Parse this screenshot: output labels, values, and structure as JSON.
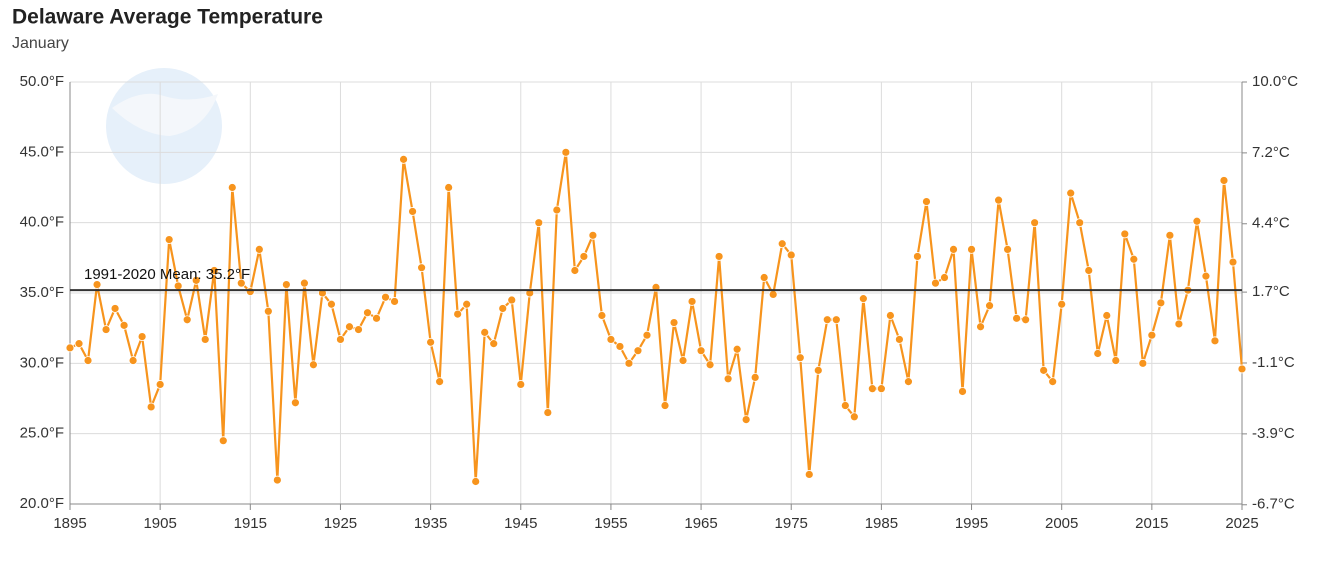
{
  "chart_data": {
    "type": "line",
    "title": "Delaware Average Temperature",
    "subtitle": "January",
    "x": [
      1895,
      1896,
      1897,
      1898,
      1899,
      1900,
      1901,
      1902,
      1903,
      1904,
      1905,
      1906,
      1907,
      1908,
      1909,
      1910,
      1911,
      1912,
      1913,
      1914,
      1915,
      1916,
      1917,
      1918,
      1919,
      1920,
      1921,
      1922,
      1923,
      1924,
      1925,
      1926,
      1927,
      1928,
      1929,
      1930,
      1931,
      1932,
      1933,
      1934,
      1935,
      1936,
      1937,
      1938,
      1939,
      1940,
      1941,
      1942,
      1943,
      1944,
      1945,
      1946,
      1947,
      1948,
      1949,
      1950,
      1951,
      1952,
      1953,
      1954,
      1955,
      1956,
      1957,
      1958,
      1959,
      1960,
      1961,
      1962,
      1963,
      1964,
      1965,
      1966,
      1967,
      1968,
      1969,
      1970,
      1971,
      1972,
      1973,
      1974,
      1975,
      1976,
      1977,
      1978,
      1979,
      1980,
      1981,
      1982,
      1983,
      1984,
      1985,
      1986,
      1987,
      1988,
      1989,
      1990,
      1991,
      1992,
      1993,
      1994,
      1995,
      1996,
      1997,
      1998,
      1999,
      2000,
      2001,
      2002,
      2003,
      2004,
      2005,
      2006,
      2007,
      2008,
      2009,
      2010,
      2011,
      2012,
      2013,
      2014,
      2015,
      2016,
      2017,
      2018,
      2019,
      2020,
      2021,
      2022,
      2023,
      2024,
      2025
    ],
    "series": [
      {
        "color": "#f7941d",
        "values": [
          31.1,
          31.4,
          30.2,
          35.6,
          32.4,
          33.9,
          32.7,
          30.2,
          31.9,
          26.9,
          28.5,
          38.8,
          35.5,
          33.1,
          35.9,
          31.7,
          36.6,
          24.5,
          42.5,
          35.7,
          35.1,
          38.1,
          33.7,
          21.7,
          35.6,
          27.2,
          35.7,
          29.9,
          35.0,
          34.2,
          31.7,
          32.6,
          32.4,
          33.6,
          33.2,
          34.7,
          34.4,
          44.5,
          40.8,
          36.8,
          31.5,
          28.7,
          42.5,
          33.5,
          34.2,
          21.6,
          32.2,
          31.4,
          33.9,
          34.5,
          28.5,
          35.0,
          40.0,
          26.5,
          40.9,
          45.0,
          36.6,
          37.6,
          39.1,
          33.4,
          31.7,
          31.2,
          30.0,
          30.9,
          32.0,
          35.4,
          27.0,
          32.9,
          30.2,
          34.4,
          30.9,
          29.9,
          37.6,
          28.9,
          31.0,
          26.0,
          29.0,
          36.1,
          34.9,
          38.5,
          37.7,
          30.4,
          22.1,
          29.5,
          33.1,
          33.1,
          27.0,
          26.2,
          34.6,
          28.2,
          28.2,
          33.4,
          31.7,
          28.7,
          37.6,
          41.5,
          35.7,
          36.1,
          38.1,
          28.0,
          38.1,
          32.6,
          34.1,
          41.6,
          38.1,
          33.2,
          33.1,
          40.0,
          29.5,
          28.7,
          34.2,
          42.1,
          40.0,
          36.6,
          30.7,
          33.4,
          30.2,
          39.2,
          37.4,
          30.0,
          32.0,
          34.3,
          39.1,
          32.8,
          35.2,
          40.1,
          36.2,
          31.6,
          43.0,
          37.2,
          29.6
        ]
      }
    ],
    "mean": {
      "value": 35.2,
      "label": "1991-2020 Mean: 35.2°F",
      "color": "#333333"
    },
    "xlim": [
      1895,
      2025
    ],
    "xticks": [
      1895,
      1905,
      1915,
      1925,
      1935,
      1945,
      1955,
      1965,
      1975,
      1985,
      1995,
      2005,
      2015,
      2025
    ],
    "ylim": [
      20,
      50
    ],
    "yticks": [
      {
        "value": 20,
        "label": "20.0°F"
      },
      {
        "value": 25,
        "label": "25.0°F"
      },
      {
        "value": 30,
        "label": "30.0°F"
      },
      {
        "value": 35,
        "label": "35.0°F"
      },
      {
        "value": 40,
        "label": "40.0°F"
      },
      {
        "value": 45,
        "label": "45.0°F"
      },
      {
        "value": 50,
        "label": "50.0°F"
      }
    ],
    "y2lim": [
      -6.67,
      10
    ],
    "y2ticks": [
      {
        "value": -6.7,
        "label": "-6.7°C"
      },
      {
        "value": -3.9,
        "label": "-3.9°C"
      },
      {
        "value": -1.1,
        "label": "-1.1°C"
      },
      {
        "value": 1.7,
        "label": "1.7°C"
      },
      {
        "value": 4.4,
        "label": "4.4°C"
      },
      {
        "value": 7.2,
        "label": "7.2°C"
      },
      {
        "value": 10,
        "label": "10.0°C"
      }
    ],
    "grid": true
  }
}
